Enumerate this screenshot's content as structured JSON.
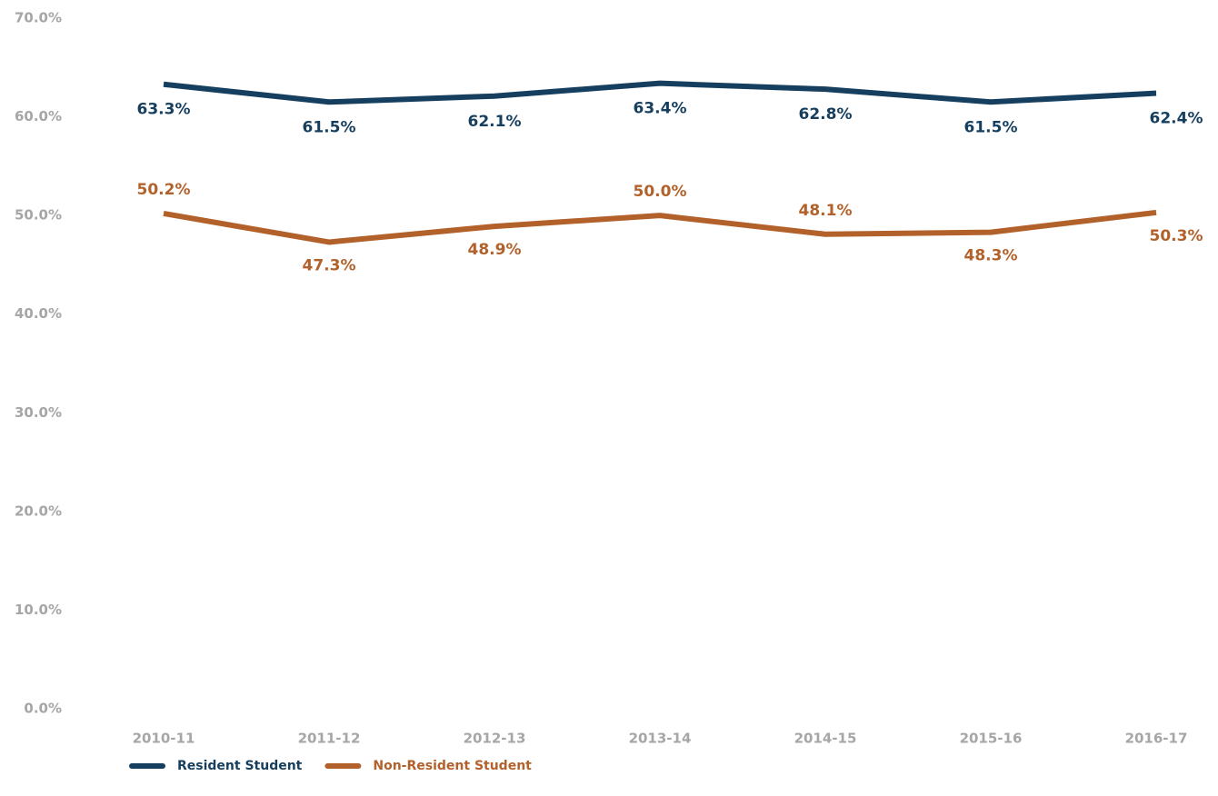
{
  "chart_data": {
    "type": "line",
    "categories": [
      "2010-11",
      "2011-12",
      "2012-13",
      "2013-14",
      "2014-15",
      "2015-16",
      "2016-17"
    ],
    "series": [
      {
        "name": "Resident Student",
        "color": "#163f5f",
        "values": [
          63.3,
          61.5,
          62.1,
          63.4,
          62.8,
          61.5,
          62.4
        ],
        "value_labels": [
          "63.3%",
          "61.5%",
          "62.1%",
          "63.4%",
          "62.8%",
          "61.5%",
          "62.4%"
        ]
      },
      {
        "name": "Non-Resident Student",
        "color": "#b3612b",
        "values": [
          50.2,
          47.3,
          48.9,
          50.0,
          48.1,
          48.3,
          50.3
        ],
        "value_labels": [
          "50.2%",
          "47.3%",
          "48.9%",
          "50.0%",
          "48.1%",
          "48.3%",
          "50.3%"
        ]
      }
    ],
    "ylim": [
      0,
      70
    ],
    "yticks": [
      {
        "value": 0,
        "label": "0.0%"
      },
      {
        "value": 10,
        "label": "10.0%"
      },
      {
        "value": 20,
        "label": "20.0%"
      },
      {
        "value": 30,
        "label": "30.0%"
      },
      {
        "value": 40,
        "label": "40.0%"
      },
      {
        "value": 50,
        "label": "50.0%"
      },
      {
        "value": 60,
        "label": "60.0%"
      },
      {
        "value": 70,
        "label": "70.0%"
      }
    ],
    "grid": false,
    "legend": "bottom-left"
  }
}
